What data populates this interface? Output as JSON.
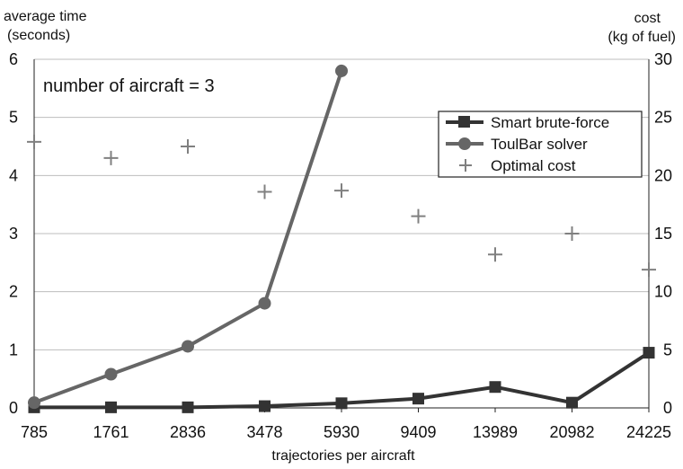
{
  "chart_data": {
    "type": "line",
    "annotation": "number of aircraft = 3",
    "xlabel": "trajectories per aircraft",
    "ylabel_left": [
      "average time",
      "(seconds)"
    ],
    "ylabel_right": [
      "cost",
      "(kg of fuel)"
    ],
    "categories": [
      "785",
      "1761",
      "2836",
      "3478",
      "5930",
      "9409",
      "13989",
      "20982",
      "24225"
    ],
    "y_left_ticks": [
      "0",
      "1",
      "2",
      "3",
      "4",
      "5",
      "6"
    ],
    "y_right_ticks": [
      "0",
      "5",
      "10",
      "15",
      "20",
      "25",
      "30"
    ],
    "ylim_left": [
      0,
      6
    ],
    "ylim_right": [
      0,
      30
    ],
    "grid": "horizontal",
    "legend_position": "right",
    "series": [
      {
        "name": "Smart brute-force",
        "axis": "left",
        "style": "line-square",
        "color": "#333333",
        "values": [
          0.01,
          0.01,
          0.01,
          0.03,
          0.08,
          0.16,
          0.36,
          0.09,
          0.95
        ]
      },
      {
        "name": "ToulBar solver",
        "axis": "left",
        "style": "line-circle",
        "color": "#666666",
        "values": [
          0.09,
          0.58,
          1.06,
          1.8,
          5.8,
          null,
          null,
          null,
          null
        ]
      },
      {
        "name": "Optimal cost",
        "axis": "right",
        "style": "plus",
        "color": "#808080",
        "values": [
          22.9,
          21.5,
          22.5,
          18.6,
          18.7,
          16.5,
          13.2,
          15.0,
          11.9
        ]
      }
    ]
  }
}
